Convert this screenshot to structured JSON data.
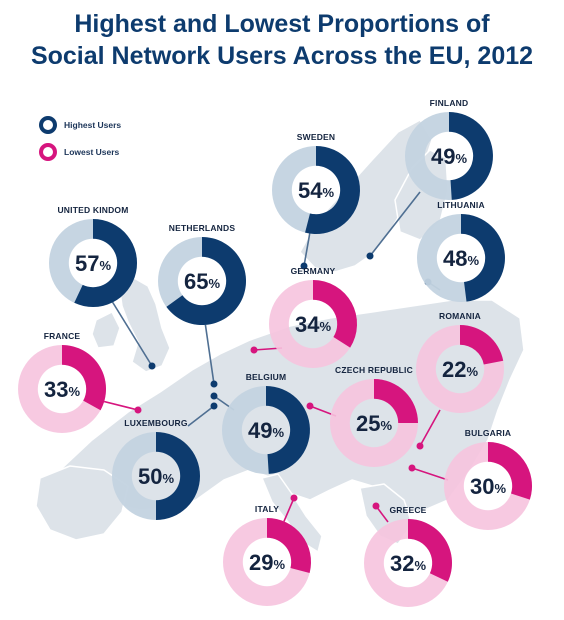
{
  "title": {
    "line1": "Highest and Lowest Proportions of",
    "line2": "Social Network Users Across the EU, 2012"
  },
  "legend": {
    "highest": "Highest Users",
    "lowest": "Lowest Users"
  },
  "colors": {
    "highest_fill": "#0d3b6e",
    "highest_track": "#c3d3e0",
    "lowest_fill": "#d6157e",
    "lowest_track": "#f6c3de",
    "map_land": "#dde3e9",
    "title": "#0d3b6e"
  },
  "countries": [
    {
      "id": "united-kingdom",
      "name": "UNITED KINDOM",
      "value": 57,
      "group": "highest"
    },
    {
      "id": "netherlands",
      "name": "NETHERLANDS",
      "value": 65,
      "group": "highest"
    },
    {
      "id": "sweden",
      "name": "SWEDEN",
      "value": 54,
      "group": "highest"
    },
    {
      "id": "finland",
      "name": "FINLAND",
      "value": 49,
      "group": "highest"
    },
    {
      "id": "lithuania",
      "name": "LITHUANIA",
      "value": 48,
      "group": "highest"
    },
    {
      "id": "belgium",
      "name": "BELGIUM",
      "value": 49,
      "group": "highest"
    },
    {
      "id": "luxembourg",
      "name": "LUXEMBOURG",
      "value": 50,
      "group": "highest"
    },
    {
      "id": "germany",
      "name": "GERMANY",
      "value": 34,
      "group": "lowest"
    },
    {
      "id": "france",
      "name": "FRANCE",
      "value": 33,
      "group": "lowest"
    },
    {
      "id": "romania",
      "name": "ROMANIA",
      "value": 22,
      "group": "lowest"
    },
    {
      "id": "czech-republic",
      "name": "CZECH REPUBLIC",
      "value": 25,
      "group": "lowest"
    },
    {
      "id": "bulgaria",
      "name": "BULGARIA",
      "value": 30,
      "group": "lowest"
    },
    {
      "id": "italy",
      "name": "ITALY",
      "value": 29,
      "group": "lowest"
    },
    {
      "id": "greece",
      "name": "GREECE",
      "value": 32,
      "group": "lowest"
    }
  ]
}
